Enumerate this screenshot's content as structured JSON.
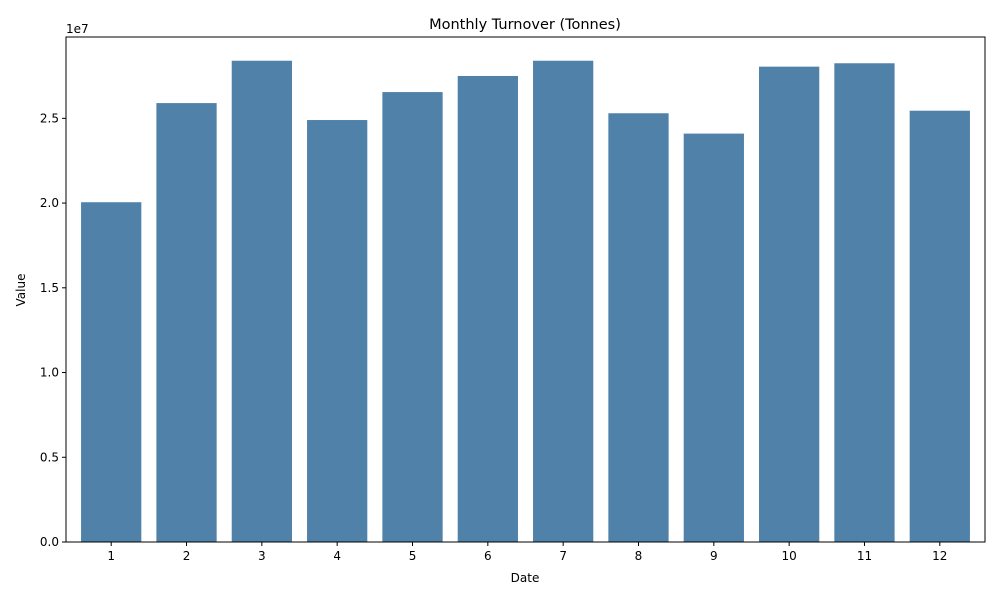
{
  "chart_data": {
    "type": "bar",
    "title": "Monthly Turnover (Tonnes)",
    "xlabel": "Date",
    "ylabel": "Value",
    "y_offset_text": "1e7",
    "categories": [
      "1",
      "2",
      "3",
      "4",
      "5",
      "6",
      "7",
      "8",
      "9",
      "10",
      "11",
      "12"
    ],
    "values": [
      20050000,
      25900000,
      28400000,
      24900000,
      26550000,
      27500000,
      28400000,
      25300000,
      24100000,
      28050000,
      28250000,
      25450000
    ],
    "ylim": [
      0,
      29800000
    ],
    "y_ticks": [
      0,
      5000000,
      10000000,
      15000000,
      20000000,
      25000000
    ],
    "y_tick_labels": [
      "0.0",
      "0.5",
      "1.0",
      "1.5",
      "2.0",
      "2.5"
    ],
    "bar_color": "#4f81a9",
    "grid": false,
    "legend": "none"
  }
}
